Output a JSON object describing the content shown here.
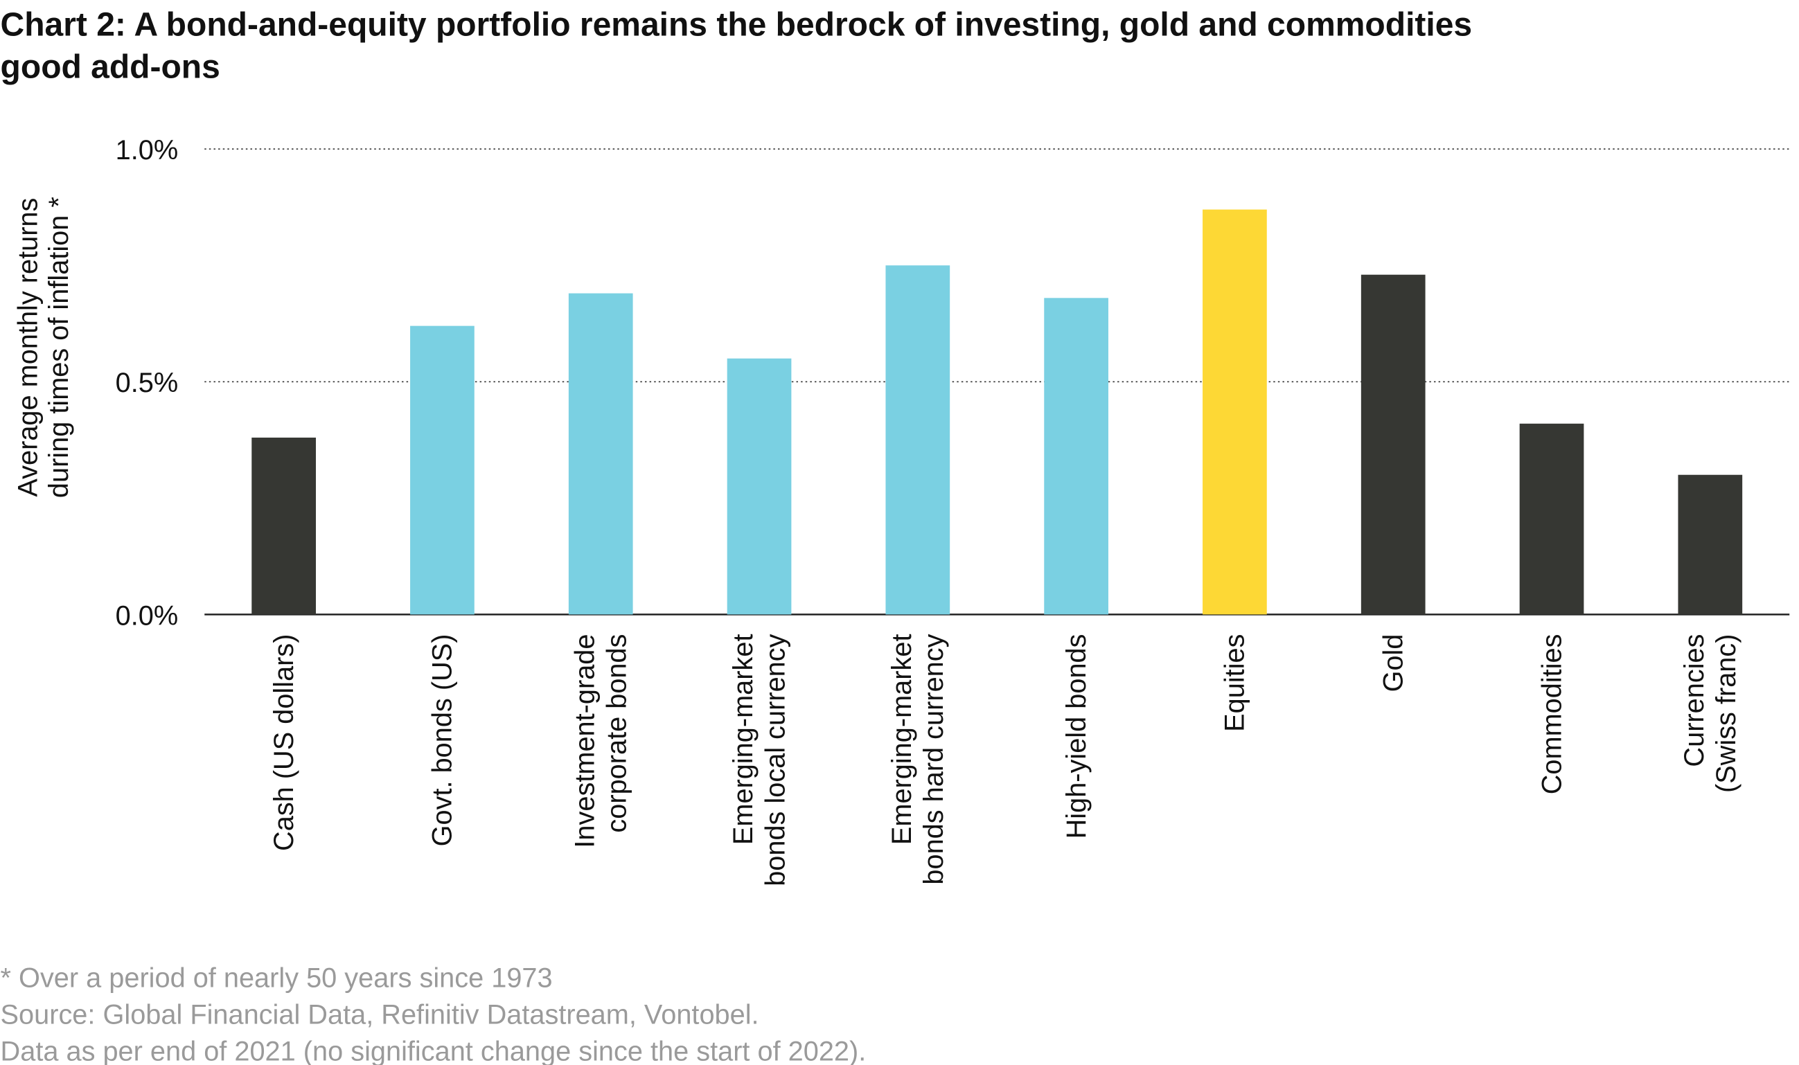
{
  "chart_data": {
    "type": "bar",
    "title": [
      "Chart 2:  A bond-and-equity portfolio remains the bedrock of investing, gold and commodities",
      "good add-ons"
    ],
    "y_label": [
      "Average monthly returns",
      "during times of inflation *"
    ],
    "categories": [
      [
        "Cash (US dollars)"
      ],
      [
        "Govt. bonds (US)"
      ],
      [
        "Investment-grade",
        "corporate bonds"
      ],
      [
        "Emerging-market",
        "bonds local currency"
      ],
      [
        "Emerging-market",
        "bonds hard currency"
      ],
      [
        "High-yield bonds"
      ],
      [
        "Equities"
      ],
      [
        "Gold"
      ],
      [
        "Commodities"
      ],
      [
        "Currencies",
        "(Swiss franc)"
      ]
    ],
    "values": [
      0.38,
      0.62,
      0.69,
      0.55,
      0.75,
      0.68,
      0.87,
      0.73,
      0.41,
      0.3
    ],
    "colors": [
      "#363733",
      "#7ad0e2",
      "#7ad0e2",
      "#7ad0e2",
      "#7ad0e2",
      "#7ad0e2",
      "#fdd835",
      "#363733",
      "#363733",
      "#363733"
    ],
    "ylim": [
      0,
      1.0
    ],
    "yticks": [
      {
        "value": 0,
        "label": "0.0%"
      },
      {
        "value": 0.5,
        "label": "0.5%"
      },
      {
        "value": 1.0,
        "label": "1.0%"
      }
    ],
    "grid": true,
    "footnotes": [
      "* Over a period of nearly 50 years since 1973",
      "Source: Global Financial Data, Refinitiv Datastream, Vontobel.",
      "Data as per end of 2021 (no significant change since the start of 2022)."
    ]
  }
}
